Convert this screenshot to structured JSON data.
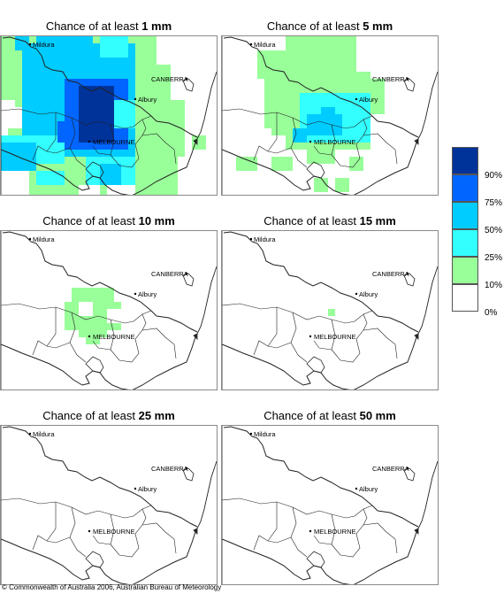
{
  "panels": [
    {
      "title_prefix": "Chance of at least ",
      "amount": "1 mm",
      "level": 1
    },
    {
      "title_prefix": "Chance of at least ",
      "amount": "5 mm",
      "level": 2
    },
    {
      "title_prefix": "Chance of at least ",
      "amount": "10 mm",
      "level": 3
    },
    {
      "title_prefix": "Chance of at least ",
      "amount": "15 mm",
      "level": 4
    },
    {
      "title_prefix": "Chance of at least ",
      "amount": "25 mm",
      "level": 5
    },
    {
      "title_prefix": "Chance of at least ",
      "amount": "50 mm",
      "level": 6
    }
  ],
  "places": {
    "mildura": "Mildura",
    "canberra": "CANBERRA",
    "albury": "Albury",
    "melbourne": "MELBOURNE"
  },
  "legend": {
    "bins": [
      {
        "color": "#003399",
        "label": "90%"
      },
      {
        "color": "#0066ff",
        "label": "75%"
      },
      {
        "color": "#00ccff",
        "label": "50%"
      },
      {
        "color": "#33ffff",
        "label": "25%"
      },
      {
        "color": "#99ff99",
        "label": "10%"
      },
      {
        "color": "#ffffff",
        "label": "0%"
      }
    ]
  },
  "footer": "© Commonwealth of Australia 2006, Australian Bureau of Meteorology"
}
